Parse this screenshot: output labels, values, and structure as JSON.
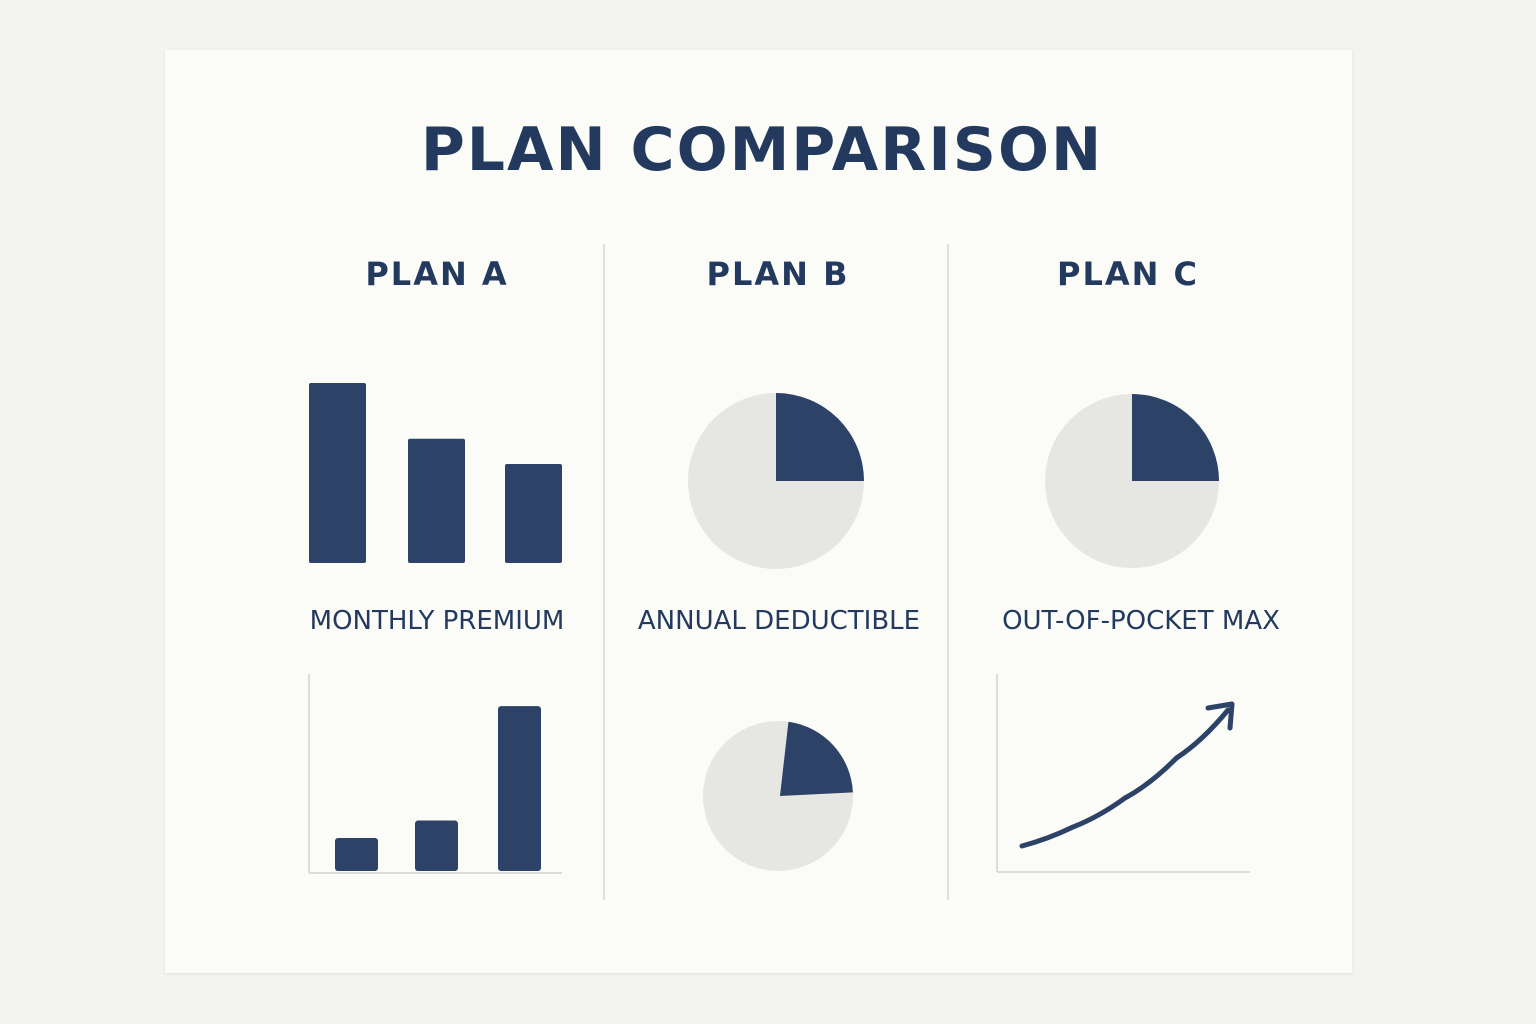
{
  "title": "PLAN COMPARISON",
  "colors": {
    "navy": "#2c4266",
    "slice_bg": "#e6e6e3",
    "axis": "#dcdcd9",
    "divider": "#d6d6d3"
  },
  "plans": [
    "PLAN A",
    "PLAN B",
    "PLAN C"
  ],
  "metrics": [
    "MONTHLY PREMIUM",
    "ANNUAL DEDUCTIBLE",
    "OUT-OF-POCKET MAX"
  ],
  "chart_data": [
    {
      "type": "bar",
      "categories": [
        "",
        "",
        ""
      ],
      "values": [
        100,
        69,
        55
      ],
      "ylim": [
        0,
        100
      ],
      "axes": false
    },
    {
      "type": "pie",
      "labels": [
        "",
        ""
      ],
      "values": [
        25,
        75
      ]
    },
    {
      "type": "pie",
      "labels": [
        "",
        ""
      ],
      "values": [
        25,
        75
      ]
    },
    {
      "type": "bar",
      "categories": [
        "",
        "",
        ""
      ],
      "values": [
        17,
        26,
        85
      ],
      "ylim": [
        0,
        100
      ],
      "axes": true
    },
    {
      "type": "pie",
      "labels": [
        "",
        ""
      ],
      "values": [
        22,
        78
      ]
    },
    {
      "type": "line",
      "x": [
        0,
        1,
        2,
        3,
        4
      ],
      "y": [
        0,
        12,
        30,
        55,
        85
      ],
      "ylim": [
        0,
        100
      ],
      "arrow": true,
      "axes": true
    }
  ]
}
